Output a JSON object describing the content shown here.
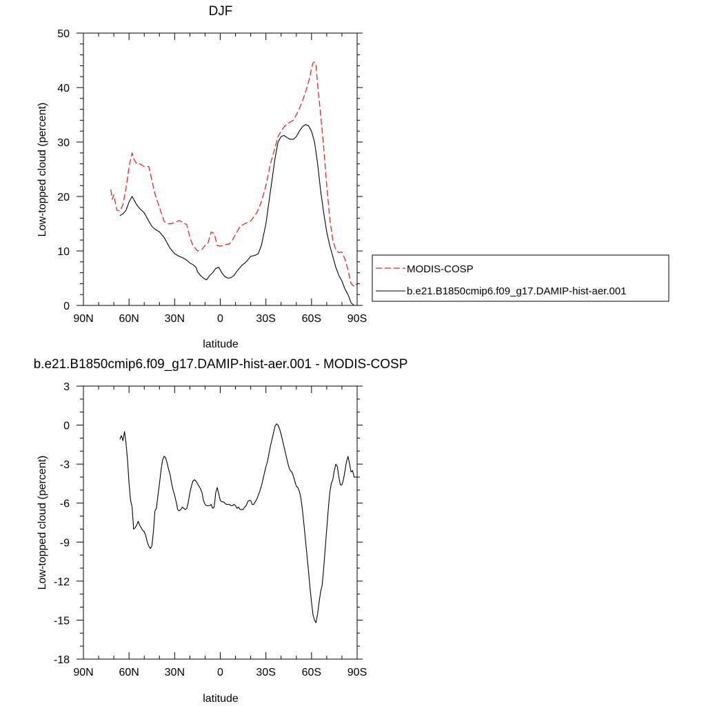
{
  "chart_data": [
    {
      "type": "line",
      "title": "DJF",
      "xlabel": "latitude",
      "ylabel": "Low-topped cloud (percent)",
      "xlim": [
        -90,
        90
      ],
      "ylim": [
        0,
        50
      ],
      "x_ticks": [
        -90,
        -60,
        -30,
        0,
        30,
        60,
        90
      ],
      "x_tick_labels": [
        "90N",
        "60N",
        "30N",
        "0",
        "30S",
        "60S",
        "90S"
      ],
      "y_ticks": [
        0,
        10,
        20,
        30,
        40,
        50
      ],
      "y_tick_labels": [
        "0",
        "10",
        "20",
        "30",
        "40",
        "50"
      ],
      "grid": false,
      "legend_position": "right",
      "series": [
        {
          "name": "MODIS-COSP",
          "style": "dashed",
          "color": "#e8241f",
          "x": [
            -72,
            -71,
            -70,
            -68,
            -66,
            -64,
            -62,
            -60,
            -58,
            -57,
            -55,
            -53,
            -50,
            -47,
            -45,
            -43,
            -40,
            -37,
            -35,
            -33,
            -30,
            -27,
            -25,
            -22,
            -20,
            -18,
            -15,
            -12,
            -10,
            -8,
            -6,
            -4,
            -2,
            0,
            2,
            4,
            6,
            8,
            10,
            13,
            16,
            20,
            24,
            27,
            30,
            33,
            36,
            38,
            40,
            42,
            45,
            48,
            51,
            54,
            57,
            59,
            60,
            61,
            62,
            63,
            64,
            66,
            68,
            70,
            72,
            74,
            76,
            78,
            80,
            82,
            84,
            86,
            88,
            90
          ],
          "y": [
            21.3,
            19.5,
            20.3,
            17.5,
            17.3,
            18.5,
            21.5,
            25.5,
            28.0,
            27.0,
            26.0,
            26.0,
            25.5,
            25.5,
            23.0,
            20.5,
            18.0,
            15.5,
            15.0,
            15.0,
            15.2,
            15.6,
            15.3,
            14.8,
            12.5,
            11.0,
            10.0,
            10.3,
            11.0,
            11.5,
            13.5,
            13.2,
            11.0,
            10.9,
            11.0,
            11.2,
            11.3,
            12.0,
            13.0,
            14.5,
            15.0,
            15.5,
            17.0,
            19.0,
            22.0,
            26.0,
            29.0,
            31.0,
            32.0,
            32.8,
            33.5,
            34.0,
            35.5,
            37.5,
            40.0,
            42.0,
            43.5,
            44.5,
            44.7,
            44.0,
            40.5,
            35.0,
            29.0,
            22.0,
            16.0,
            12.0,
            10.2,
            9.7,
            9.8,
            8.5,
            6.5,
            4.0,
            3.5,
            4.0
          ]
        },
        {
          "name": "b.e21.B1850cmip6.f09_g17.DAMIP-hist-aer.001",
          "style": "solid",
          "color": "#000000",
          "x": [
            -66,
            -64,
            -62,
            -60,
            -58,
            -57,
            -55,
            -53,
            -50,
            -47,
            -45,
            -43,
            -40,
            -37,
            -35,
            -33,
            -30,
            -27,
            -25,
            -22,
            -20,
            -18,
            -16,
            -15,
            -13,
            -11,
            -9,
            -7,
            -5,
            -3,
            -1,
            0,
            1,
            3,
            5,
            7,
            9,
            11,
            14,
            17,
            20,
            23,
            25,
            27,
            30,
            33,
            36,
            38,
            40,
            42,
            44,
            46,
            48,
            50,
            52,
            54,
            56,
            58,
            60,
            62,
            64,
            66,
            68,
            70,
            72,
            74,
            76,
            78,
            80,
            82,
            84,
            86,
            88,
            90
          ],
          "y": [
            16.5,
            16.8,
            17.5,
            19.0,
            20.0,
            19.5,
            18.5,
            17.8,
            17.0,
            15.5,
            14.5,
            14.0,
            13.5,
            12.5,
            11.5,
            10.5,
            9.5,
            9.0,
            8.8,
            8.3,
            7.8,
            7.5,
            7.0,
            6.2,
            5.5,
            5.0,
            4.7,
            5.5,
            6.0,
            6.8,
            7.0,
            6.5,
            6.0,
            5.3,
            5.0,
            5.1,
            5.5,
            6.3,
            7.3,
            8.0,
            9.0,
            9.2,
            9.5,
            11.0,
            15.0,
            21.0,
            27.0,
            30.0,
            31.0,
            31.2,
            30.8,
            30.5,
            30.5,
            31.0,
            32.0,
            32.8,
            33.2,
            33.0,
            32.0,
            30.0,
            26.0,
            21.0,
            17.0,
            13.5,
            11.0,
            9.0,
            7.0,
            5.5,
            4.5,
            3.0,
            2.0,
            0.5,
            0.0,
            0.0
          ]
        }
      ]
    },
    {
      "type": "line",
      "title": "b.e21.B1850cmip6.f09_g17.DAMIP-hist-aer.001 - MODIS-COSP",
      "xlabel": "latitude",
      "ylabel": "Low-topped cloud (percent)",
      "xlim": [
        -90,
        90
      ],
      "ylim": [
        -18,
        3
      ],
      "x_ticks": [
        -90,
        -60,
        -30,
        0,
        30,
        60,
        90
      ],
      "x_tick_labels": [
        "90N",
        "60N",
        "30N",
        "0",
        "30S",
        "60S",
        "90S"
      ],
      "y_ticks": [
        -18,
        -15,
        -12,
        -9,
        -6,
        -3,
        0,
        3
      ],
      "y_tick_labels": [
        "-18",
        "-15",
        "-12",
        "-9",
        "-6",
        "-3",
        "0",
        "3"
      ],
      "grid": false,
      "series": [
        {
          "style": "solid",
          "color": "#000000",
          "x": [
            -66,
            -65,
            -64,
            -63,
            -62,
            -61,
            -60,
            -59,
            -58,
            -57,
            -56,
            -55,
            -54,
            -53,
            -52,
            -51,
            -50,
            -49,
            -48,
            -47,
            -46,
            -45,
            -44,
            -43,
            -42,
            -41,
            -40,
            -39,
            -38,
            -37,
            -36,
            -35,
            -34,
            -33,
            -32,
            -31,
            -30,
            -29,
            -28,
            -27,
            -26,
            -25,
            -24,
            -23,
            -22,
            -21,
            -20,
            -19,
            -18,
            -17,
            -16,
            -15,
            -14,
            -13,
            -12,
            -11,
            -10,
            -9,
            -8,
            -7,
            -6,
            -5,
            -4,
            -3,
            -2,
            -1,
            0,
            1,
            2,
            3,
            4,
            5,
            6,
            7,
            8,
            9,
            10,
            11,
            12,
            13,
            14,
            15,
            16,
            17,
            18,
            19,
            20,
            21,
            22,
            23,
            24,
            25,
            26,
            27,
            28,
            29,
            30,
            31,
            32,
            33,
            34,
            35,
            36,
            37,
            38,
            39,
            40,
            41,
            42,
            43,
            44,
            45,
            46,
            47,
            48,
            49,
            50,
            51,
            52,
            53,
            54,
            55,
            56,
            57,
            58,
            59,
            60,
            61,
            62,
            63,
            64,
            65,
            66,
            67,
            68,
            69,
            70,
            71,
            72,
            73,
            74,
            75,
            76,
            77,
            78,
            79,
            80,
            81,
            82,
            83,
            84,
            85,
            86,
            87,
            88,
            89,
            90
          ],
          "y": [
            -1.1,
            -0.8,
            -1.2,
            -0.5,
            -1.4,
            -2.7,
            -4.5,
            -5.8,
            -6.3,
            -8.0,
            -7.9,
            -7.7,
            -7.4,
            -7.7,
            -7.9,
            -8.1,
            -8.2,
            -8.5,
            -9.0,
            -9.3,
            -9.5,
            -9.3,
            -8.2,
            -6.6,
            -6.4,
            -5.4,
            -4.5,
            -3.5,
            -2.7,
            -2.4,
            -2.5,
            -2.9,
            -3.4,
            -3.8,
            -4.5,
            -5.0,
            -5.4,
            -5.9,
            -6.5,
            -6.6,
            -6.5,
            -6.3,
            -6.4,
            -6.5,
            -6.4,
            -5.9,
            -5.2,
            -4.7,
            -4.3,
            -4.2,
            -4.3,
            -4.5,
            -4.7,
            -4.9,
            -5.2,
            -5.8,
            -6.1,
            -6.2,
            -6.2,
            -6.2,
            -6.1,
            -6.4,
            -6.3,
            -5.2,
            -4.8,
            -5.3,
            -5.8,
            -5.9,
            -5.9,
            -6.0,
            -6.1,
            -6.1,
            -6.1,
            -6.2,
            -6.2,
            -6.1,
            -6.2,
            -6.4,
            -6.3,
            -6.5,
            -6.5,
            -6.5,
            -6.3,
            -6.2,
            -5.9,
            -5.8,
            -5.8,
            -6.1,
            -6.1,
            -5.9,
            -5.7,
            -5.4,
            -5.1,
            -4.7,
            -4.2,
            -3.7,
            -3.2,
            -2.8,
            -2.2,
            -1.6,
            -1.1,
            -0.6,
            -0.1,
            0.1,
            0.0,
            -0.3,
            -0.7,
            -1.2,
            -1.7,
            -2.2,
            -2.7,
            -3.2,
            -3.5,
            -3.6,
            -3.9,
            -4.3,
            -4.7,
            -4.8,
            -5.1,
            -5.6,
            -6.5,
            -7.6,
            -8.8,
            -10.0,
            -11.2,
            -12.5,
            -13.6,
            -14.6,
            -15.0,
            -15.2,
            -14.5,
            -13.6,
            -12.8,
            -12.3,
            -11.0,
            -9.5,
            -8.0,
            -6.5,
            -5.2,
            -4.5,
            -4.2,
            -3.5,
            -3.0,
            -3.2,
            -4.0,
            -4.6,
            -4.6,
            -4.2,
            -3.5,
            -2.8,
            -2.4,
            -3.0,
            -3.6,
            -3.5,
            -4.0,
            -4.0,
            -4.0
          ]
        }
      ]
    }
  ]
}
